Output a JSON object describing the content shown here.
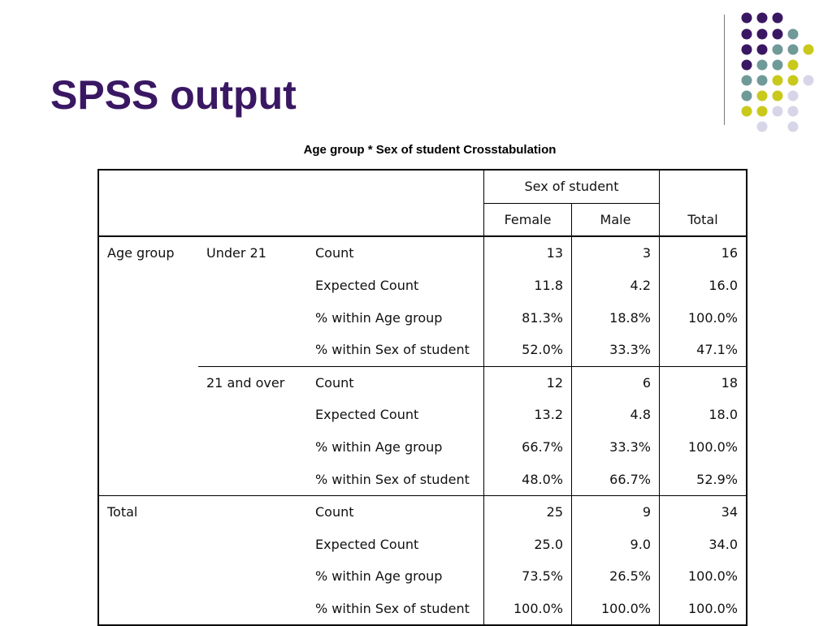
{
  "slide": {
    "title": "SPSS output",
    "accent_color": "#3a1763"
  },
  "table": {
    "caption": "Age group * Sex of student Crosstabulation",
    "header": {
      "group_label": "Sex of student",
      "female": "Female",
      "male": "Male",
      "total": "Total"
    },
    "row_var": "Age group",
    "total_label": "Total",
    "groups": [
      {
        "label": "Under 21",
        "rows": [
          {
            "stat": "Count",
            "female": "13",
            "male": "3",
            "total": "16"
          },
          {
            "stat": "Expected Count",
            "female": "11.8",
            "male": "4.2",
            "total": "16.0"
          },
          {
            "stat": "% within Age group",
            "female": "81.3%",
            "male": "18.8%",
            "total": "100.0%"
          },
          {
            "stat": "% within Sex of student",
            "female": "52.0%",
            "male": "33.3%",
            "total": "47.1%"
          }
        ]
      },
      {
        "label": "21 and over",
        "rows": [
          {
            "stat": "Count",
            "female": "12",
            "male": "6",
            "total": "18"
          },
          {
            "stat": "Expected Count",
            "female": "13.2",
            "male": "4.8",
            "total": "18.0"
          },
          {
            "stat": "% within Age group",
            "female": "66.7%",
            "male": "33.3%",
            "total": "100.0%"
          },
          {
            "stat": "% within Sex of student",
            "female": "48.0%",
            "male": "66.7%",
            "total": "52.9%"
          }
        ]
      },
      {
        "label": "",
        "rows": [
          {
            "stat": "Count",
            "female": "25",
            "male": "9",
            "total": "34"
          },
          {
            "stat": "Expected Count",
            "female": "25.0",
            "male": "9.0",
            "total": "34.0"
          },
          {
            "stat": "% within Age group",
            "female": "73.5%",
            "male": "26.5%",
            "total": "100.0%"
          },
          {
            "stat": "% within Sex of student",
            "female": "100.0%",
            "male": "100.0%",
            "total": "100.0%"
          }
        ]
      }
    ]
  },
  "decoration": {
    "dot_colors": [
      "#3a1763",
      "#6f9a98",
      "#c9c91c",
      "#d7d6e8"
    ]
  }
}
